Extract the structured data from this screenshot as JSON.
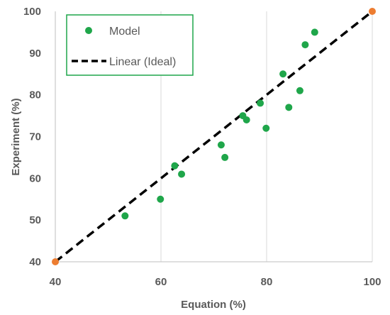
{
  "chart_data": {
    "type": "scatter",
    "title": "",
    "xlabel": "Equation (%)",
    "ylabel": "Experiment (%)",
    "xlim": [
      40,
      100
    ],
    "ylim": [
      40,
      100
    ],
    "xticks": [
      40,
      60,
      80,
      100
    ],
    "yticks": [
      40,
      50,
      60,
      70,
      80,
      90,
      100
    ],
    "grid": "vertical",
    "legend_position": "top-left",
    "series": [
      {
        "name": "Model",
        "type": "scatter",
        "color": "#1fa64a",
        "points": [
          {
            "x": 53.2,
            "y": 51
          },
          {
            "x": 59.9,
            "y": 55
          },
          {
            "x": 62.6,
            "y": 63
          },
          {
            "x": 63.9,
            "y": 61
          },
          {
            "x": 71.4,
            "y": 68
          },
          {
            "x": 72.1,
            "y": 65
          },
          {
            "x": 75.5,
            "y": 75
          },
          {
            "x": 76.2,
            "y": 74
          },
          {
            "x": 78.8,
            "y": 78
          },
          {
            "x": 79.9,
            "y": 72
          },
          {
            "x": 83.1,
            "y": 85
          },
          {
            "x": 84.2,
            "y": 77
          },
          {
            "x": 86.3,
            "y": 81
          },
          {
            "x": 87.3,
            "y": 92
          },
          {
            "x": 89.1,
            "y": 95
          }
        ]
      },
      {
        "name": "Linear (Ideal)",
        "type": "line",
        "style": "dashed",
        "color": "#000000",
        "endpoint_color": "#ed7d31",
        "points": [
          {
            "x": 40,
            "y": 40
          },
          {
            "x": 100,
            "y": 100
          }
        ]
      }
    ]
  }
}
